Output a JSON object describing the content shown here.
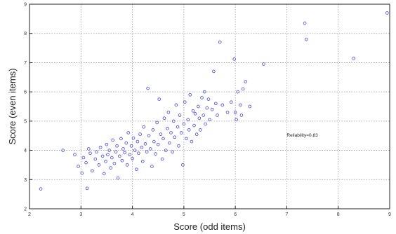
{
  "chart_data": {
    "type": "scatter",
    "title": "",
    "xlabel": "Score (odd items)",
    "ylabel": "Score (even items)",
    "xlim": [
      2,
      9
    ],
    "ylim": [
      2,
      9
    ],
    "xticks": [
      "2",
      "3",
      "4",
      "5",
      "6",
      "7",
      "8",
      "9"
    ],
    "yticks": [
      "2",
      "3",
      "4",
      "5",
      "6",
      "7",
      "8",
      "9"
    ],
    "grid": true,
    "marker_color": "#5a5ad8",
    "annotation": "Reliability=0.83",
    "series": [
      {
        "points": [
          [
            2.22,
            2.68
          ],
          [
            2.65,
            4.0
          ],
          [
            2.88,
            3.85
          ],
          [
            2.95,
            3.45
          ],
          [
            3.02,
            3.22
          ],
          [
            3.05,
            3.75
          ],
          [
            3.1,
            3.58
          ],
          [
            3.12,
            2.7
          ],
          [
            3.15,
            4.05
          ],
          [
            3.18,
            3.9
          ],
          [
            3.22,
            3.3
          ],
          [
            3.28,
            3.7
          ],
          [
            3.3,
            3.95
          ],
          [
            3.35,
            3.5
          ],
          [
            3.38,
            4.1
          ],
          [
            3.42,
            3.8
          ],
          [
            3.45,
            3.2
          ],
          [
            3.48,
            3.62
          ],
          [
            3.5,
            4.2
          ],
          [
            3.52,
            3.85
          ],
          [
            3.55,
            4.0
          ],
          [
            3.58,
            3.4
          ],
          [
            3.6,
            3.75
          ],
          [
            3.62,
            4.35
          ],
          [
            3.65,
            3.55
          ],
          [
            3.68,
            3.95
          ],
          [
            3.7,
            4.15
          ],
          [
            3.72,
            3.05
          ],
          [
            3.75,
            3.8
          ],
          [
            3.78,
            4.4
          ],
          [
            3.8,
            3.65
          ],
          [
            3.82,
            4.05
          ],
          [
            3.85,
            3.92
          ],
          [
            3.88,
            4.25
          ],
          [
            3.9,
            3.5
          ],
          [
            3.92,
            4.6
          ],
          [
            3.95,
            3.85
          ],
          [
            3.98,
            4.15
          ],
          [
            4.0,
            3.72
          ],
          [
            4.02,
            4.42
          ],
          [
            4.05,
            4.0
          ],
          [
            4.08,
            3.35
          ],
          [
            4.1,
            4.3
          ],
          [
            4.12,
            3.9
          ],
          [
            4.15,
            4.55
          ],
          [
            4.18,
            4.1
          ],
          [
            4.2,
            3.62
          ],
          [
            4.22,
            4.8
          ],
          [
            4.25,
            4.22
          ],
          [
            4.28,
            3.95
          ],
          [
            4.3,
            6.12
          ],
          [
            4.32,
            4.5
          ],
          [
            4.35,
            4.05
          ],
          [
            4.38,
            3.45
          ],
          [
            4.4,
            4.7
          ],
          [
            4.42,
            4.3
          ],
          [
            4.45,
            3.88
          ],
          [
            4.48,
            4.95
          ],
          [
            4.5,
            4.2
          ],
          [
            4.52,
            5.75
          ],
          [
            4.55,
            4.55
          ],
          [
            4.58,
            3.7
          ],
          [
            4.6,
            4.4
          ],
          [
            4.62,
            5.1
          ],
          [
            4.65,
            4.0
          ],
          [
            4.68,
            4.75
          ],
          [
            4.7,
            5.3
          ],
          [
            4.72,
            4.25
          ],
          [
            4.75,
            4.6
          ],
          [
            4.78,
            3.95
          ],
          [
            4.8,
            5.0
          ],
          [
            4.82,
            4.45
          ],
          [
            4.85,
            5.55
          ],
          [
            4.88,
            4.8
          ],
          [
            4.9,
            4.15
          ],
          [
            4.92,
            5.2
          ],
          [
            4.95,
            4.6
          ],
          [
            4.98,
            3.5
          ],
          [
            5.0,
            4.9
          ],
          [
            5.02,
            5.65
          ],
          [
            5.05,
            4.4
          ],
          [
            5.08,
            5.05
          ],
          [
            5.1,
            4.7
          ],
          [
            5.12,
            5.9
          ],
          [
            5.15,
            4.3
          ],
          [
            5.18,
            5.35
          ],
          [
            5.2,
            4.85
          ],
          [
            5.22,
            5.25
          ],
          [
            5.25,
            4.55
          ],
          [
            5.28,
            5.5
          ],
          [
            5.3,
            5.1
          ],
          [
            5.32,
            4.7
          ],
          [
            5.35,
            5.8
          ],
          [
            5.38,
            5.2
          ],
          [
            5.4,
            6.0
          ],
          [
            5.42,
            4.9
          ],
          [
            5.45,
            5.45
          ],
          [
            5.48,
            5.75
          ],
          [
            5.5,
            5.05
          ],
          [
            5.55,
            5.4
          ],
          [
            5.58,
            6.7
          ],
          [
            5.62,
            5.6
          ],
          [
            5.65,
            5.2
          ],
          [
            5.7,
            7.7
          ],
          [
            5.75,
            5.55
          ],
          [
            5.85,
            5.3
          ],
          [
            5.92,
            5.65
          ],
          [
            5.98,
            7.12
          ],
          [
            6.0,
            5.3
          ],
          [
            6.02,
            5.05
          ],
          [
            6.05,
            6.0
          ],
          [
            6.1,
            5.55
          ],
          [
            6.12,
            5.2
          ],
          [
            6.15,
            6.1
          ],
          [
            6.2,
            6.35
          ],
          [
            6.28,
            5.5
          ],
          [
            6.55,
            6.95
          ],
          [
            7.35,
            8.35
          ],
          [
            7.38,
            7.8
          ],
          [
            8.3,
            7.15
          ],
          [
            8.95,
            8.7
          ]
        ]
      }
    ]
  }
}
